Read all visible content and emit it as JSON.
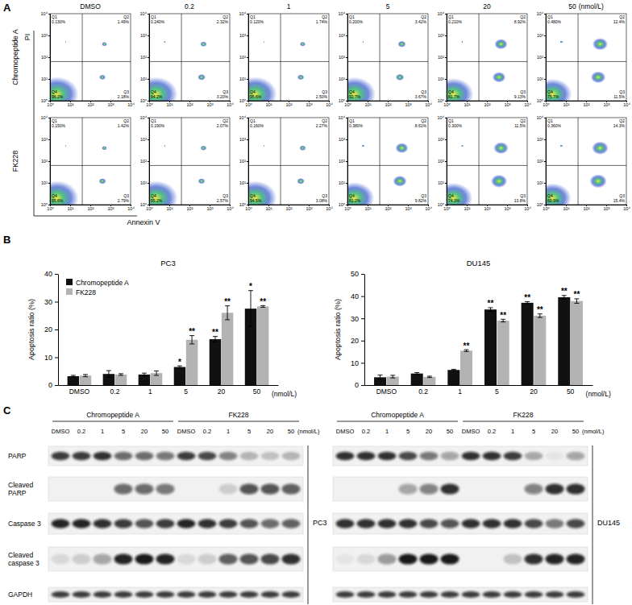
{
  "panel_labels": [
    "A",
    "B",
    "C"
  ],
  "flow": {
    "x_label": "Annexin V",
    "y_label": "PI",
    "columns": [
      "DMSO",
      "0.2",
      "1",
      "5",
      "20",
      "50"
    ],
    "unit": "(nmol/L)",
    "log": true,
    "xlim": [
      1,
      10000
    ],
    "ylim": [
      1,
      10000
    ],
    "xticks": [
      {
        "value": 1,
        "label": "10⁰"
      },
      {
        "value": 10,
        "label": "10¹"
      },
      {
        "value": 100,
        "label": "10²"
      },
      {
        "value": 1000,
        "label": "10³"
      },
      {
        "value": 10000,
        "label": "10⁴"
      }
    ],
    "yticks": [
      {
        "value": 1,
        "label": "10⁰"
      },
      {
        "value": 10,
        "label": "10¹"
      },
      {
        "value": 100,
        "label": "10²"
      },
      {
        "value": 1000,
        "label": "10³"
      },
      {
        "value": 10000,
        "label": "10⁴"
      }
    ],
    "gates": {
      "x": 40,
      "y": 63
    },
    "quadrant_names": [
      "Q1",
      "Q2",
      "Q3",
      "Q4"
    ],
    "rows": [
      {
        "name": "Chromopeptide A",
        "plots": [
          [
            {
              "value": 0.13,
              "label": "0.130%"
            },
            {
              "value": 1.49,
              "label": "1.49%"
            },
            {
              "value": 2.18,
              "label": "2.18%"
            },
            {
              "value": 96.2,
              "label": "96.2%"
            }
          ],
          [
            {
              "value": 0.24,
              "label": "0.240%"
            },
            {
              "value": 2.32,
              "label": "2.32%"
            },
            {
              "value": 3.2,
              "label": "3.20%"
            },
            {
              "value": 94.2,
              "label": "94.2%"
            }
          ],
          [
            {
              "value": 0.12,
              "label": "0.120%"
            },
            {
              "value": 1.74,
              "label": "1.74%"
            },
            {
              "value": 2.5,
              "label": "2.50%"
            },
            {
              "value": 95.6,
              "label": "95.6%"
            }
          ],
          [
            {
              "value": 0.2,
              "label": "0.200%"
            },
            {
              "value": 3.42,
              "label": "3.42%"
            },
            {
              "value": 3.67,
              "label": "3.67%"
            },
            {
              "value": 92.7,
              "label": "92.7%"
            }
          ],
          [
            {
              "value": 0.21,
              "label": "0.210%"
            },
            {
              "value": 8.92,
              "label": "8.92%"
            },
            {
              "value": 9.13,
              "label": "9.13%"
            },
            {
              "value": 81.7,
              "label": "81.7%"
            }
          ],
          [
            {
              "value": 0.48,
              "label": "0.480%"
            },
            {
              "value": 12.4,
              "label": "12.4%"
            },
            {
              "value": 11.5,
              "label": "11.5%"
            },
            {
              "value": 75.7,
              "label": "75.7%"
            }
          ]
        ]
      },
      {
        "name": "FK228",
        "plots": [
          [
            {
              "value": 0.15,
              "label": "0.150%"
            },
            {
              "value": 1.42,
              "label": "1.42%"
            },
            {
              "value": 2.79,
              "label": "2.79%"
            },
            {
              "value": 95.6,
              "label": "95.6%"
            }
          ],
          [
            {
              "value": 0.19,
              "label": "0.190%"
            },
            {
              "value": 2.07,
              "label": "2.07%"
            },
            {
              "value": 2.57,
              "label": "2.57%"
            },
            {
              "value": 95.2,
              "label": "95.2%"
            }
          ],
          [
            {
              "value": 0.16,
              "label": "0.160%"
            },
            {
              "value": 2.27,
              "label": "2.27%"
            },
            {
              "value": 3.08,
              "label": "3.08%"
            },
            {
              "value": 94.5,
              "label": "94.5%"
            }
          ],
          [
            {
              "value": 0.38,
              "label": "0.380%"
            },
            {
              "value": 8.61,
              "label": "8.61%"
            },
            {
              "value": 9.82,
              "label": "9.82%"
            },
            {
              "value": 81.2,
              "label": "81.2%"
            }
          ],
          [
            {
              "value": 0.3,
              "label": "0.300%"
            },
            {
              "value": 11.5,
              "label": "11.5%"
            },
            {
              "value": 13.8,
              "label": "13.8%"
            },
            {
              "value": 74.3,
              "label": "74.3%"
            }
          ],
          [
            {
              "value": 0.36,
              "label": "0.360%"
            },
            {
              "value": 14.3,
              "label": "14.3%"
            },
            {
              "value": 15.4,
              "label": "15.4%"
            },
            {
              "value": 69.9,
              "label": "69.9%"
            }
          ]
        ]
      }
    ]
  },
  "chart_data": [
    {
      "type": "bar",
      "title": "PC3",
      "y_label": "Apoptosis ratio (%)",
      "x_label": "(nmol/L)",
      "categories": [
        "DMSO",
        "0.2",
        "1",
        "5",
        "20",
        "50"
      ],
      "ylim": [
        0,
        40
      ],
      "yticks": [
        0,
        10,
        20,
        30,
        40
      ],
      "legend": "top-left",
      "series": [
        {
          "name": "Chromopeptide A",
          "color": "#111111",
          "values": [
            3.2,
            4.0,
            3.8,
            6.5,
            16.5,
            27.5
          ],
          "errors": [
            0.3,
            1.2,
            0.5,
            0.4,
            1.0,
            6.5
          ],
          "significance": [
            null,
            null,
            null,
            "*",
            "**",
            "*"
          ]
        },
        {
          "name": "FK228",
          "color": "#b3b3b3",
          "values": [
            3.4,
            3.8,
            4.3,
            16.3,
            26.0,
            28.3
          ],
          "errors": [
            0.4,
            0.3,
            0.8,
            1.5,
            2.5,
            0.3
          ],
          "significance": [
            null,
            null,
            null,
            "**",
            "**",
            "**"
          ]
        }
      ]
    },
    {
      "type": "bar",
      "title": "DU145",
      "y_label": "Apoptosis ratio (%)",
      "x_label": "(nmol/L)",
      "categories": [
        "DMSO",
        "0.2",
        "1",
        "5",
        "20",
        "50"
      ],
      "ylim": [
        0,
        50
      ],
      "yticks": [
        0,
        10,
        20,
        30,
        40,
        50
      ],
      "legend": false,
      "series": [
        {
          "name": "Chromopeptide A",
          "color": "#111111",
          "values": [
            3.5,
            5.2,
            6.8,
            34.0,
            37.0,
            39.5
          ],
          "errors": [
            1.0,
            0.4,
            0.3,
            0.8,
            0.5,
            0.8
          ],
          "significance": [
            null,
            null,
            null,
            "**",
            "**",
            "**"
          ]
        },
        {
          "name": "FK228",
          "color": "#b3b3b3",
          "values": [
            3.8,
            3.7,
            15.5,
            29.0,
            31.2,
            37.8
          ],
          "errors": [
            0.6,
            0.3,
            0.4,
            0.6,
            0.8,
            1.0
          ],
          "significance": [
            null,
            null,
            "**",
            "**",
            "**",
            "**"
          ]
        }
      ]
    }
  ],
  "blots": {
    "groups": [
      "Chromopeptide A",
      "FK228"
    ],
    "lanes": [
      "DMSO",
      "0.2",
      "1",
      "5",
      "20",
      "50",
      "DMSO",
      "0.2",
      "1",
      "5",
      "20",
      "50"
    ],
    "unit": "(nmol/L)",
    "proteins": [
      [
        "PARP"
      ],
      [
        "Cleaved",
        "PARP"
      ],
      [
        "Caspase 3"
      ],
      [
        "Cleaved",
        "caspase 3"
      ],
      [
        "GAPDH"
      ]
    ],
    "panels": [
      {
        "cell": "PC3",
        "rows": [
          [
            0.8,
            0.8,
            0.85,
            0.6,
            0.6,
            0.55,
            0.8,
            0.75,
            0.5,
            0.25,
            0.2,
            0.25
          ],
          [
            0,
            0,
            0,
            0.6,
            0.6,
            0.55,
            0,
            0,
            0.15,
            0.7,
            0.7,
            0.65
          ],
          [
            0.9,
            0.9,
            0.85,
            0.8,
            0.7,
            0.8,
            0.9,
            0.85,
            0.8,
            0.7,
            0.6,
            0.65
          ],
          [
            0.1,
            0.15,
            0.35,
            0.9,
            0.95,
            0.9,
            0.1,
            0.15,
            0.65,
            0.7,
            0.75,
            0.85
          ],
          [
            0.8,
            0.8,
            0.8,
            0.8,
            0.8,
            0.8,
            0.8,
            0.8,
            0.8,
            0.8,
            0.8,
            0.8
          ]
        ]
      },
      {
        "cell": "DU145",
        "rows": [
          [
            0.85,
            0.85,
            0.85,
            0.75,
            0.55,
            0.35,
            0.85,
            0.85,
            0.8,
            0.3,
            0.05,
            0.35
          ],
          [
            0,
            0,
            0,
            0.35,
            0.5,
            0.85,
            0,
            0,
            0,
            0.5,
            0.85,
            0.85
          ],
          [
            0.85,
            0.85,
            0.85,
            0.85,
            0.75,
            0.7,
            0.85,
            0.85,
            0.85,
            0.75,
            0.55,
            0.75
          ],
          [
            0.05,
            0.1,
            0.4,
            0.95,
            0.95,
            0.95,
            0,
            0,
            0.2,
            0.85,
            0.9,
            0.9
          ],
          [
            0.8,
            0.8,
            0.8,
            0.8,
            0.8,
            0.8,
            0.8,
            0.8,
            0.8,
            0.8,
            0.8,
            0.8
          ]
        ]
      }
    ]
  }
}
